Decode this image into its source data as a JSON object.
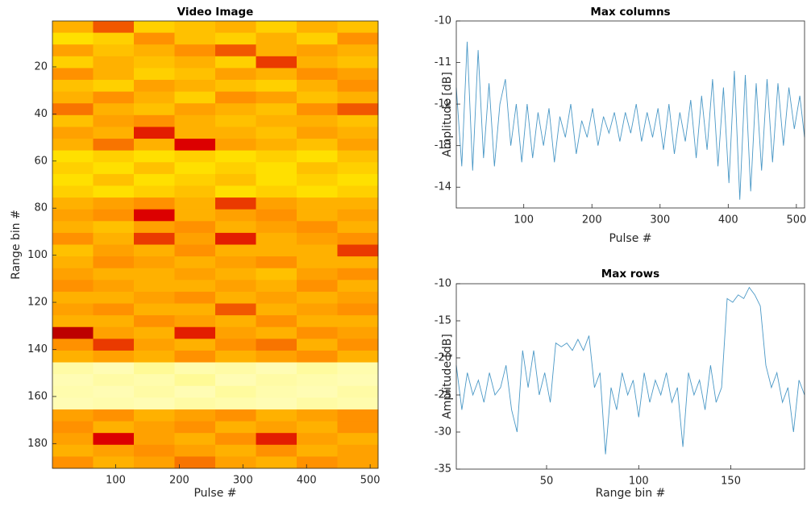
{
  "chart_data": [
    {
      "type": "heatmap",
      "title": "Video Image",
      "xlabel": "Pulse #",
      "ylabel": "Range bin #",
      "xlim": [
        0.5,
        512.5
      ],
      "ylim": [
        0.5,
        190.5
      ],
      "y_reverse": true,
      "colormap": "hot",
      "xticks": [
        100,
        200,
        300,
        400,
        500
      ],
      "yticks": [
        20,
        40,
        60,
        80,
        100,
        120,
        140,
        160,
        180
      ],
      "z": [
        [
          0.5,
          0.7,
          0.4,
          0.45,
          0.5,
          0.4,
          0.5,
          0.45
        ],
        [
          0.35,
          0.4,
          0.6,
          0.45,
          0.4,
          0.5,
          0.4,
          0.6
        ],
        [
          0.55,
          0.45,
          0.5,
          0.6,
          0.7,
          0.5,
          0.55,
          0.5
        ],
        [
          0.4,
          0.5,
          0.45,
          0.5,
          0.4,
          0.75,
          0.5,
          0.45
        ],
        [
          0.6,
          0.5,
          0.4,
          0.45,
          0.55,
          0.5,
          0.6,
          0.55
        ],
        [
          0.45,
          0.4,
          0.55,
          0.5,
          0.45,
          0.4,
          0.5,
          0.6
        ],
        [
          0.5,
          0.6,
          0.5,
          0.4,
          0.6,
          0.55,
          0.45,
          0.5
        ],
        [
          0.65,
          0.5,
          0.45,
          0.55,
          0.5,
          0.45,
          0.6,
          0.7
        ],
        [
          0.45,
          0.55,
          0.6,
          0.5,
          0.45,
          0.5,
          0.5,
          0.45
        ],
        [
          0.55,
          0.5,
          0.8,
          0.5,
          0.5,
          0.45,
          0.55,
          0.5
        ],
        [
          0.5,
          0.65,
          0.5,
          0.85,
          0.55,
          0.5,
          0.45,
          0.55
        ],
        [
          0.35,
          0.4,
          0.35,
          0.4,
          0.35,
          0.4,
          0.35,
          0.45
        ],
        [
          0.4,
          0.35,
          0.45,
          0.35,
          0.4,
          0.35,
          0.45,
          0.4
        ],
        [
          0.35,
          0.45,
          0.35,
          0.4,
          0.45,
          0.35,
          0.4,
          0.35
        ],
        [
          0.4,
          0.35,
          0.4,
          0.45,
          0.35,
          0.4,
          0.35,
          0.4
        ],
        [
          0.5,
          0.55,
          0.6,
          0.5,
          0.75,
          0.55,
          0.5,
          0.5
        ],
        [
          0.55,
          0.6,
          0.85,
          0.5,
          0.55,
          0.6,
          0.5,
          0.55
        ],
        [
          0.5,
          0.45,
          0.55,
          0.6,
          0.5,
          0.55,
          0.6,
          0.5
        ],
        [
          0.6,
          0.5,
          0.75,
          0.55,
          0.8,
          0.5,
          0.55,
          0.6
        ],
        [
          0.45,
          0.55,
          0.5,
          0.6,
          0.5,
          0.5,
          0.5,
          0.75
        ],
        [
          0.5,
          0.6,
          0.55,
          0.5,
          0.55,
          0.6,
          0.5,
          0.5
        ],
        [
          0.55,
          0.5,
          0.5,
          0.55,
          0.5,
          0.45,
          0.55,
          0.6
        ],
        [
          0.6,
          0.55,
          0.5,
          0.5,
          0.55,
          0.5,
          0.6,
          0.5
        ],
        [
          0.5,
          0.5,
          0.55,
          0.6,
          0.5,
          0.55,
          0.5,
          0.55
        ],
        [
          0.55,
          0.6,
          0.5,
          0.5,
          0.7,
          0.5,
          0.55,
          0.6
        ],
        [
          0.5,
          0.5,
          0.6,
          0.55,
          0.5,
          0.6,
          0.5,
          0.5
        ],
        [
          0.9,
          0.55,
          0.5,
          0.8,
          0.55,
          0.5,
          0.6,
          0.55
        ],
        [
          0.6,
          0.75,
          0.55,
          0.5,
          0.6,
          0.65,
          0.5,
          0.6
        ],
        [
          0.5,
          0.55,
          0.5,
          0.6,
          0.5,
          0.55,
          0.6,
          0.5
        ],
        [
          0.08,
          0.06,
          0.1,
          0.07,
          0.08,
          0.06,
          0.09,
          0.07
        ],
        [
          0.06,
          0.08,
          0.07,
          0.1,
          0.06,
          0.08,
          0.07,
          0.06
        ],
        [
          0.07,
          0.06,
          0.08,
          0.06,
          0.09,
          0.07,
          0.06,
          0.08
        ],
        [
          0.06,
          0.07,
          0.06,
          0.08,
          0.07,
          0.06,
          0.08,
          0.07
        ],
        [
          0.55,
          0.6,
          0.5,
          0.55,
          0.6,
          0.5,
          0.55,
          0.6
        ],
        [
          0.6,
          0.5,
          0.55,
          0.6,
          0.5,
          0.55,
          0.5,
          0.6
        ],
        [
          0.55,
          0.85,
          0.55,
          0.5,
          0.6,
          0.8,
          0.55,
          0.5
        ],
        [
          0.5,
          0.55,
          0.6,
          0.55,
          0.5,
          0.6,
          0.5,
          0.55
        ],
        [
          0.6,
          0.5,
          0.55,
          0.65,
          0.55,
          0.5,
          0.6,
          0.55
        ]
      ]
    },
    {
      "type": "line",
      "title": "Max  columns",
      "xlabel": "Pulse #",
      "ylabel": "Amplitude [dB]",
      "xlim": [
        1,
        512
      ],
      "ylim": [
        -14.5,
        -10
      ],
      "xticks": [
        100,
        200,
        300,
        400,
        500
      ],
      "yticks": [
        -14,
        -13,
        -12,
        -11,
        -10
      ],
      "color": "#4a98c6",
      "x": [
        1,
        9,
        17,
        25,
        33,
        41,
        49,
        57,
        65,
        73,
        81,
        89,
        97,
        105,
        113,
        121,
        129,
        137,
        145,
        153,
        161,
        169,
        177,
        185,
        193,
        201,
        209,
        217,
        225,
        233,
        241,
        249,
        257,
        265,
        273,
        281,
        289,
        297,
        305,
        313,
        321,
        329,
        337,
        345,
        353,
        361,
        369,
        377,
        385,
        393,
        401,
        409,
        417,
        425,
        433,
        441,
        449,
        457,
        465,
        473,
        481,
        489,
        497,
        505,
        512
      ],
      "values": [
        -11.6,
        -13.5,
        -10.5,
        -13.6,
        -10.7,
        -13.3,
        -11.5,
        -13.5,
        -12.0,
        -11.4,
        -13.0,
        -12.0,
        -13.4,
        -12.0,
        -13.3,
        -12.2,
        -13.0,
        -12.1,
        -13.4,
        -12.3,
        -12.8,
        -12.0,
        -13.2,
        -12.4,
        -12.8,
        -12.1,
        -13.0,
        -12.3,
        -12.7,
        -12.2,
        -12.9,
        -12.2,
        -12.7,
        -12.0,
        -12.9,
        -12.2,
        -12.8,
        -12.1,
        -13.1,
        -12.0,
        -13.2,
        -12.2,
        -12.9,
        -11.9,
        -13.3,
        -11.8,
        -13.1,
        -11.4,
        -13.5,
        -11.6,
        -13.9,
        -11.2,
        -14.3,
        -11.3,
        -14.1,
        -11.5,
        -13.6,
        -11.4,
        -13.4,
        -11.5,
        -13.0,
        -11.6,
        -12.6,
        -11.8,
        -12.8
      ]
    },
    {
      "type": "line",
      "title": "Max  rows",
      "xlabel": "Range bin #",
      "ylabel": "Amplitude [dB]",
      "xlim": [
        1,
        190
      ],
      "ylim": [
        -35,
        -10
      ],
      "xticks": [
        50,
        100,
        150
      ],
      "yticks": [
        -35,
        -30,
        -25,
        -20,
        -15,
        -10
      ],
      "color": "#4a98c6",
      "x": [
        1,
        4,
        7,
        10,
        13,
        16,
        19,
        22,
        25,
        28,
        31,
        34,
        37,
        40,
        43,
        46,
        49,
        52,
        55,
        58,
        61,
        64,
        67,
        70,
        73,
        76,
        79,
        82,
        85,
        88,
        91,
        94,
        97,
        100,
        103,
        106,
        109,
        112,
        115,
        118,
        121,
        124,
        127,
        130,
        133,
        136,
        139,
        142,
        145,
        148,
        151,
        154,
        157,
        160,
        163,
        166,
        169,
        172,
        175,
        178,
        181,
        184,
        187,
        190
      ],
      "values": [
        -21,
        -27,
        -22,
        -25,
        -23,
        -26,
        -22,
        -25,
        -24,
        -21,
        -27,
        -30,
        -19,
        -24,
        -19,
        -25,
        -22,
        -26,
        -18,
        -18.5,
        -18,
        -19,
        -17.5,
        -19,
        -17,
        -24,
        -22,
        -33,
        -24,
        -27,
        -22,
        -25,
        -23,
        -28,
        -22,
        -26,
        -23,
        -25,
        -22,
        -26,
        -24,
        -32,
        -22,
        -25,
        -23,
        -27,
        -21,
        -26,
        -24,
        -12,
        -12.5,
        -11.5,
        -12,
        -10.5,
        -11.5,
        -13,
        -21,
        -24,
        -22,
        -26,
        -24,
        -30,
        -23,
        -25
      ]
    }
  ]
}
